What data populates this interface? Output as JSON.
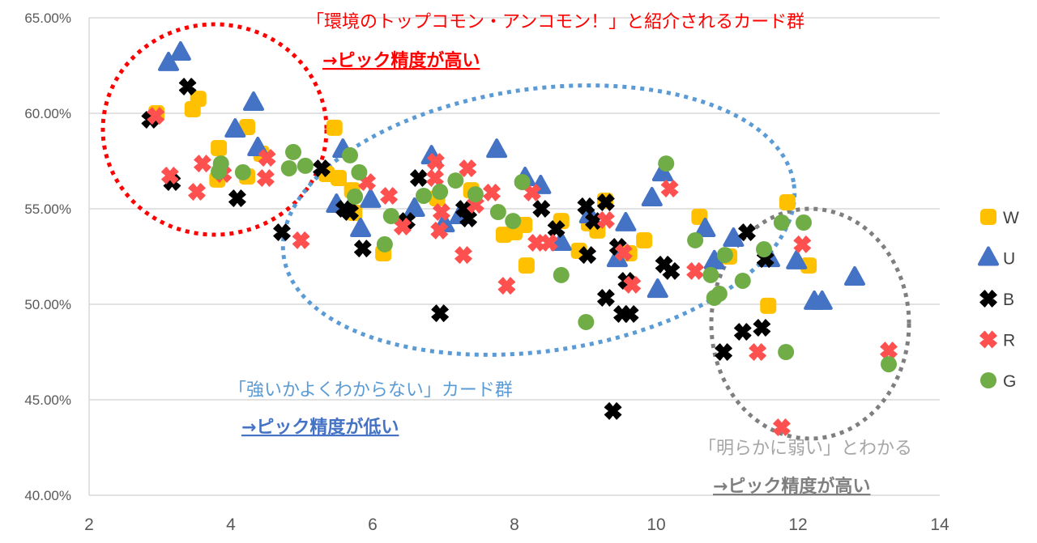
{
  "chart_data": {
    "type": "scatter",
    "title": "",
    "xlabel": "",
    "ylabel": "",
    "xlim": [
      2,
      14
    ],
    "ylim": [
      40,
      65
    ],
    "x_ticks": [
      "2",
      "4",
      "6",
      "8",
      "10",
      "12",
      "14"
    ],
    "y_ticks": [
      "40.00%",
      "45.00%",
      "50.00%",
      "55.00%",
      "60.00%",
      "65.00%"
    ],
    "grid": "horizontal",
    "legend": "right",
    "series": [
      {
        "name": "W",
        "color": "#FFC000",
        "marker": "rounded-square",
        "points": [
          [
            2.95,
            60.0
          ],
          [
            3.54,
            60.76
          ],
          [
            3.46,
            60.21
          ],
          [
            3.83,
            58.18
          ],
          [
            3.81,
            56.53
          ],
          [
            4.23,
            59.28
          ],
          [
            4.23,
            56.69
          ],
          [
            4.43,
            57.88
          ],
          [
            5.46,
            59.24
          ],
          [
            5.35,
            56.82
          ],
          [
            5.52,
            56.61
          ],
          [
            5.71,
            55.97
          ],
          [
            5.74,
            54.79
          ],
          [
            6.15,
            52.67
          ],
          [
            6.91,
            55.55
          ],
          [
            7.39,
            55.97
          ],
          [
            7.85,
            53.64
          ],
          [
            8.0,
            53.77
          ],
          [
            8.14,
            54.15
          ],
          [
            8.17,
            52.03
          ],
          [
            8.66,
            54.36
          ],
          [
            8.91,
            52.8
          ],
          [
            9.05,
            54.24
          ],
          [
            9.17,
            53.86
          ],
          [
            9.28,
            55.42
          ],
          [
            9.62,
            52.67
          ],
          [
            9.83,
            53.35
          ],
          [
            10.61,
            54.58
          ],
          [
            11.03,
            52.5
          ],
          [
            11.58,
            49.92
          ],
          [
            11.85,
            55.34
          ],
          [
            12.15,
            52.03
          ]
        ]
      },
      {
        "name": "U",
        "color": "#4472C4",
        "marker": "triangle",
        "points": [
          [
            3.12,
            62.63
          ],
          [
            3.29,
            63.18
          ],
          [
            4.06,
            59.15
          ],
          [
            4.32,
            60.55
          ],
          [
            4.38,
            58.18
          ],
          [
            5.58,
            58.09
          ],
          [
            5.49,
            55.21
          ],
          [
            5.97,
            55.47
          ],
          [
            5.83,
            53.94
          ],
          [
            6.59,
            55.0
          ],
          [
            6.83,
            57.75
          ],
          [
            7.01,
            54.19
          ],
          [
            7.23,
            54.62
          ],
          [
            7.75,
            58.09
          ],
          [
            8.15,
            56.61
          ],
          [
            8.37,
            56.19
          ],
          [
            8.66,
            53.22
          ],
          [
            9.06,
            54.66
          ],
          [
            9.45,
            52.37
          ],
          [
            9.57,
            54.24
          ],
          [
            9.94,
            55.55
          ],
          [
            10.09,
            56.86
          ],
          [
            10.02,
            50.76
          ],
          [
            10.69,
            53.94
          ],
          [
            11.09,
            53.43
          ],
          [
            10.82,
            52.25
          ],
          [
            11.6,
            52.37
          ],
          [
            11.98,
            52.25
          ],
          [
            12.8,
            51.4
          ],
          [
            12.23,
            50.13
          ],
          [
            12.34,
            50.13
          ]
        ]
      },
      {
        "name": "B",
        "color": "#000000",
        "marker": "cross",
        "points": [
          [
            2.86,
            59.66
          ],
          [
            3.39,
            61.4
          ],
          [
            3.17,
            56.4
          ],
          [
            4.09,
            55.55
          ],
          [
            4.72,
            53.77
          ],
          [
            5.28,
            57.12
          ],
          [
            5.6,
            55.0
          ],
          [
            5.68,
            54.83
          ],
          [
            5.86,
            52.92
          ],
          [
            6.48,
            54.36
          ],
          [
            6.65,
            56.61
          ],
          [
            7.29,
            55.0
          ],
          [
            7.35,
            54.49
          ],
          [
            6.95,
            49.53
          ],
          [
            8.38,
            55.0
          ],
          [
            8.59,
            53.94
          ],
          [
            9.01,
            55.13
          ],
          [
            9.12,
            54.36
          ],
          [
            9.29,
            55.34
          ],
          [
            9.03,
            52.58
          ],
          [
            9.46,
            53.01
          ],
          [
            9.58,
            51.23
          ],
          [
            9.29,
            50.34
          ],
          [
            9.52,
            49.49
          ],
          [
            9.63,
            49.49
          ],
          [
            10.11,
            52.08
          ],
          [
            10.21,
            51.74
          ],
          [
            9.39,
            44.41
          ],
          [
            11.28,
            53.77
          ],
          [
            11.54,
            52.37
          ],
          [
            11.22,
            48.56
          ],
          [
            11.49,
            48.77
          ],
          [
            10.95,
            47.5
          ]
        ]
      },
      {
        "name": "R",
        "color": "#FF5050",
        "marker": "cross",
        "points": [
          [
            2.94,
            59.87
          ],
          [
            3.14,
            56.74
          ],
          [
            3.6,
            57.37
          ],
          [
            3.52,
            55.89
          ],
          [
            3.89,
            56.82
          ],
          [
            4.51,
            57.67
          ],
          [
            4.49,
            56.61
          ],
          [
            4.99,
            53.35
          ],
          [
            5.92,
            56.4
          ],
          [
            6.23,
            55.68
          ],
          [
            6.42,
            54.07
          ],
          [
            6.89,
            57.46
          ],
          [
            6.88,
            56.61
          ],
          [
            6.97,
            54.83
          ],
          [
            6.94,
            53.86
          ],
          [
            7.34,
            57.12
          ],
          [
            7.45,
            55.21
          ],
          [
            7.28,
            52.58
          ],
          [
            7.68,
            55.85
          ],
          [
            7.89,
            50.97
          ],
          [
            8.25,
            55.85
          ],
          [
            8.31,
            53.22
          ],
          [
            8.49,
            53.22
          ],
          [
            9.29,
            54.41
          ],
          [
            9.54,
            52.71
          ],
          [
            9.66,
            51.02
          ],
          [
            10.19,
            56.06
          ],
          [
            10.55,
            51.74
          ],
          [
            12.06,
            53.14
          ],
          [
            11.43,
            47.5
          ],
          [
            11.77,
            43.56
          ],
          [
            13.28,
            47.58
          ]
        ]
      },
      {
        "name": "G",
        "color": "#70AD47",
        "marker": "circle",
        "points": [
          [
            3.86,
            57.37
          ],
          [
            3.83,
            56.95
          ],
          [
            4.17,
            56.91
          ],
          [
            4.88,
            57.97
          ],
          [
            4.82,
            57.12
          ],
          [
            5.05,
            57.25
          ],
          [
            5.68,
            57.8
          ],
          [
            5.81,
            56.91
          ],
          [
            5.75,
            55.64
          ],
          [
            6.26,
            54.62
          ],
          [
            6.17,
            53.14
          ],
          [
            6.72,
            55.68
          ],
          [
            6.95,
            55.89
          ],
          [
            7.17,
            56.48
          ],
          [
            7.45,
            55.76
          ],
          [
            7.77,
            54.83
          ],
          [
            7.98,
            54.36
          ],
          [
            8.11,
            56.4
          ],
          [
            8.66,
            51.53
          ],
          [
            9.01,
            49.07
          ],
          [
            10.14,
            57.37
          ],
          [
            10.55,
            53.35
          ],
          [
            10.77,
            51.53
          ],
          [
            10.82,
            50.34
          ],
          [
            10.89,
            50.55
          ],
          [
            10.97,
            52.58
          ],
          [
            11.22,
            51.23
          ],
          [
            11.52,
            52.88
          ],
          [
            11.77,
            54.28
          ],
          [
            12.08,
            54.28
          ],
          [
            11.83,
            47.5
          ],
          [
            13.28,
            46.86
          ]
        ]
      }
    ]
  },
  "annotations": {
    "top_group": {
      "label": "「環境のトップコモン・アンコモン！」と紹介されるカード群",
      "note": "→ピック精度が高い",
      "color": "#FF0000"
    },
    "middle_group": {
      "label": "「強いかよくわからない」カード群",
      "note": "→ピック精度が低い",
      "color": "#5B9BD5",
      "note_color": "#4472C4"
    },
    "bottom_group": {
      "label": "「明らかに弱い」とわかる",
      "note": "→ピック精度が高い",
      "color": "#A6A6A6",
      "note_color": "#7F7F7F"
    }
  }
}
